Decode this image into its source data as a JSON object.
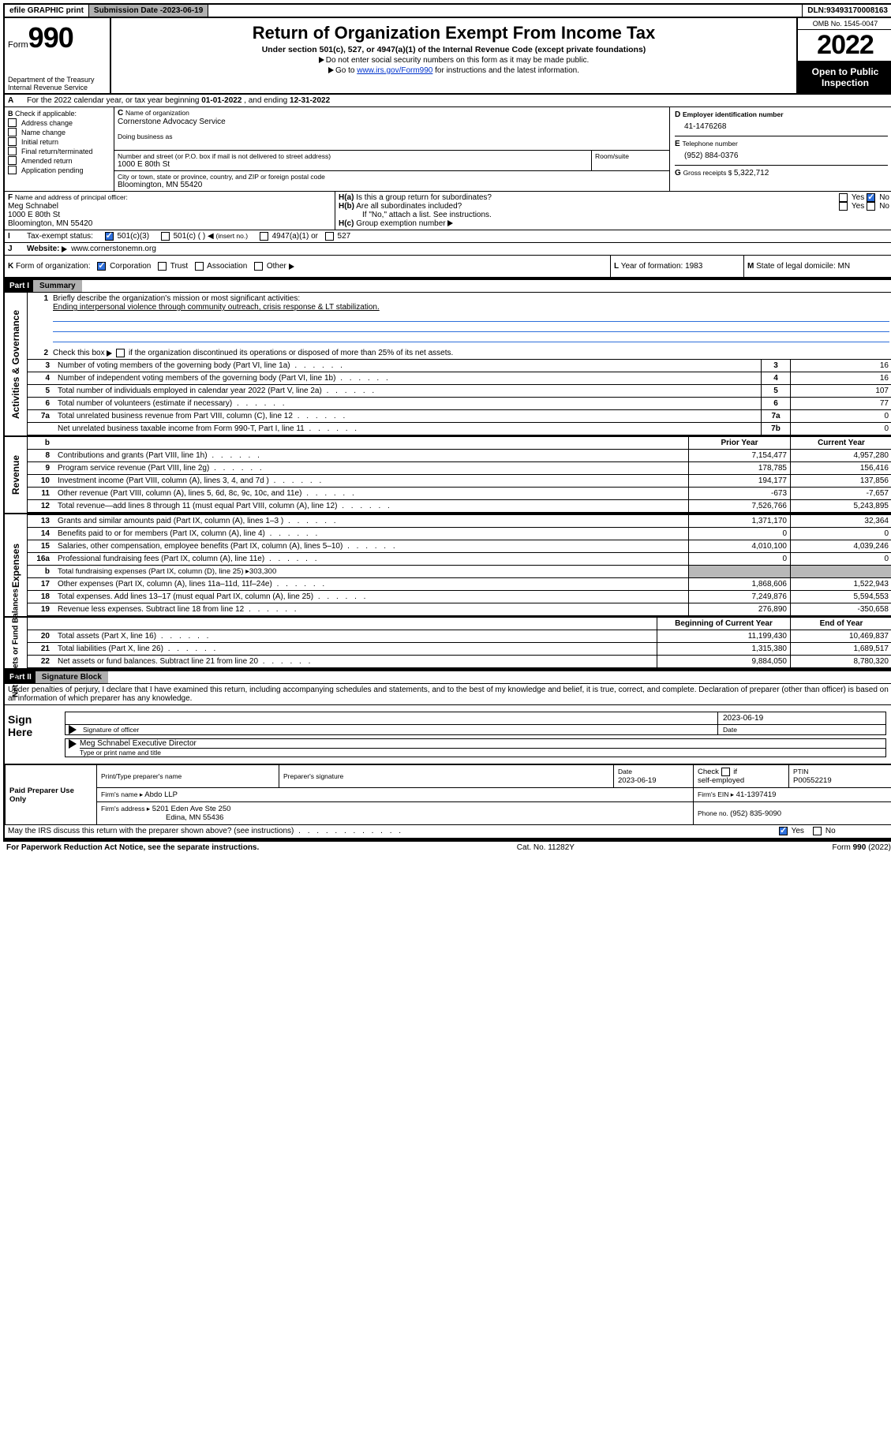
{
  "topbar": {
    "efile": "efile GRAPHIC print",
    "sub_label": "Submission Date - ",
    "sub_date": "2023-06-19",
    "dln_label": "DLN: ",
    "dln": "93493170008163"
  },
  "header": {
    "form_small": "Form",
    "form_big": "990",
    "dept": "Department of the Treasury",
    "irs": "Internal Revenue Service",
    "title": "Return of Organization Exempt From Income Tax",
    "sub1": "Under section 501(c), 527, or 4947(a)(1) of the Internal Revenue Code (except private foundations)",
    "sub2": "Do not enter social security numbers on this form as it may be made public.",
    "sub3a": "Go to ",
    "sub3link": "www.irs.gov/Form990",
    "sub3b": " for instructions and the latest information.",
    "omb": "OMB No. 1545-0047",
    "year": "2022",
    "open": "Open to Public Inspection"
  },
  "lineA": {
    "prefix": "For the 2022 calendar year, or tax year beginning ",
    "begin": "01-01-2022",
    "mid": ", and ending ",
    "end": "12-31-2022"
  },
  "boxB": {
    "label": "Check if applicable:",
    "items": [
      "Address change",
      "Name change",
      "Initial return",
      "Final return/terminated",
      "Amended return",
      "Application pending"
    ]
  },
  "boxC": {
    "name_lbl": "Name of organization",
    "name": "Cornerstone Advocacy Service",
    "dba_lbl": "Doing business as",
    "addr_lbl": "Number and street (or P.O. box if mail is not delivered to street address)",
    "room_lbl": "Room/suite",
    "addr": "1000 E 80th St",
    "city_lbl": "City or town, state or province, country, and ZIP or foreign postal code",
    "city": "Bloomington, MN  55420"
  },
  "boxD": {
    "lbl": "Employer identification number",
    "val": "41-1476268"
  },
  "boxE": {
    "lbl": "Telephone number",
    "val": "(952) 884-0376"
  },
  "boxG": {
    "lbl": "Gross receipts $ ",
    "val": "5,322,712"
  },
  "boxF": {
    "lbl": "Name and address of principal officer:",
    "name": "Meg Schnabel",
    "addr1": "1000 E 80th St",
    "addr2": "Bloomington, MN  55420"
  },
  "boxH": {
    "a_lbl": "Is this a group return for subordinates?",
    "b_lbl": "Are all subordinates included?",
    "b_note": "If \"No,\" attach a list. See instructions.",
    "c_lbl": "Group exemption number",
    "yes": "Yes",
    "no": "No"
  },
  "boxI": {
    "lbl": "Tax-exempt status:",
    "o1": "501(c)(3)",
    "o2": "501(c) (  )",
    "o2b": "(insert no.)",
    "o3": "4947(a)(1) or",
    "o4": "527"
  },
  "boxJ": {
    "lbl": "Website:",
    "val": "www.cornerstonemn.org"
  },
  "boxK": {
    "lbl": "Form of organization:",
    "o1": "Corporation",
    "o2": "Trust",
    "o3": "Association",
    "o4": "Other"
  },
  "boxL": {
    "lbl": "Year of formation: ",
    "val": "1983"
  },
  "boxM": {
    "lbl": "State of legal domicile: ",
    "val": "MN"
  },
  "partI": {
    "hdr": "Part I",
    "title": "Summary",
    "q1": "Briefly describe the organization's mission or most significant activities:",
    "q1a": "Ending interpersonal violence through community outreach, crisis response & LT stabilization.",
    "q2": "Check this box ▸        if the organization discontinued its operations or disposed of more than 25% of its net assets.",
    "lines": [
      {
        "n": "3",
        "t": "Number of voting members of the governing body (Part VI, line 1a)",
        "rn": "3",
        "v": "16"
      },
      {
        "n": "4",
        "t": "Number of independent voting members of the governing body (Part VI, line 1b)",
        "rn": "4",
        "v": "16"
      },
      {
        "n": "5",
        "t": "Total number of individuals employed in calendar year 2022 (Part V, line 2a)",
        "rn": "5",
        "v": "107"
      },
      {
        "n": "6",
        "t": "Total number of volunteers (estimate if necessary)",
        "rn": "6",
        "v": "77"
      },
      {
        "n": "7a",
        "t": "Total unrelated business revenue from Part VIII, column (C), line 12",
        "rn": "7a",
        "v": "0"
      },
      {
        "n": "",
        "t": "Net unrelated business taxable income from Form 990-T, Part I, line 11",
        "rn": "7b",
        "v": "0"
      }
    ],
    "side1": "Activities & Governance",
    "side2": "Revenue",
    "side3": "Expenses",
    "side4": "Net Assets or Fund Balances",
    "th_prior": "Prior Year",
    "th_curr": "Current Year",
    "rev": [
      {
        "n": "8",
        "t": "Contributions and grants (Part VIII, line 1h)",
        "p": "7,154,477",
        "c": "4,957,280"
      },
      {
        "n": "9",
        "t": "Program service revenue (Part VIII, line 2g)",
        "p": "178,785",
        "c": "156,416"
      },
      {
        "n": "10",
        "t": "Investment income (Part VIII, column (A), lines 3, 4, and 7d )",
        "p": "194,177",
        "c": "137,856"
      },
      {
        "n": "11",
        "t": "Other revenue (Part VIII, column (A), lines 5, 6d, 8c, 9c, 10c, and 11e)",
        "p": "-673",
        "c": "-7,657"
      },
      {
        "n": "12",
        "t": "Total revenue—add lines 8 through 11 (must equal Part VIII, column (A), line 12)",
        "p": "7,526,766",
        "c": "5,243,895"
      }
    ],
    "exp": [
      {
        "n": "13",
        "t": "Grants and similar amounts paid (Part IX, column (A), lines 1–3 )",
        "p": "1,371,170",
        "c": "32,364"
      },
      {
        "n": "14",
        "t": "Benefits paid to or for members (Part IX, column (A), line 4)",
        "p": "0",
        "c": "0"
      },
      {
        "n": "15",
        "t": "Salaries, other compensation, employee benefits (Part IX, column (A), lines 5–10)",
        "p": "4,010,100",
        "c": "4,039,246"
      },
      {
        "n": "16a",
        "t": "Professional fundraising fees (Part IX, column (A), line 11e)",
        "p": "0",
        "c": "0"
      }
    ],
    "exp_b": {
      "n": "b",
      "t": "Total fundraising expenses (Part IX, column (D), line 25) ▸",
      "v": "303,300"
    },
    "exp2": [
      {
        "n": "17",
        "t": "Other expenses (Part IX, column (A), lines 11a–11d, 11f–24e)",
        "p": "1,868,606",
        "c": "1,522,943"
      },
      {
        "n": "18",
        "t": "Total expenses. Add lines 13–17 (must equal Part IX, column (A), line 25)",
        "p": "7,249,876",
        "c": "5,594,553"
      },
      {
        "n": "19",
        "t": "Revenue less expenses. Subtract line 18 from line 12",
        "p": "276,890",
        "c": "-350,658"
      }
    ],
    "th_beg": "Beginning of Current Year",
    "th_end": "End of Year",
    "net": [
      {
        "n": "20",
        "t": "Total assets (Part X, line 16)",
        "p": "11,199,430",
        "c": "10,469,837"
      },
      {
        "n": "21",
        "t": "Total liabilities (Part X, line 26)",
        "p": "1,315,380",
        "c": "1,689,517"
      },
      {
        "n": "22",
        "t": "Net assets or fund balances. Subtract line 21 from line 20",
        "p": "9,884,050",
        "c": "8,780,320"
      }
    ]
  },
  "partII": {
    "hdr": "Part II",
    "title": "Signature Block",
    "decl": "Under penalties of perjury, I declare that I have examined this return, including accompanying schedules and statements, and to the best of my knowledge and belief, it is true, correct, and complete. Declaration of preparer (other than officer) is based on all information of which preparer has any knowledge.",
    "sign_here": "Sign Here",
    "sig_officer": "Signature of officer",
    "sig_date": "Date",
    "sig_date_v": "2023-06-19",
    "sig_name": "Meg Schnabel  Executive Director",
    "sig_name_lbl": "Type or print name and title",
    "paid": "Paid Preparer Use Only",
    "p_name_lbl": "Print/Type preparer's name",
    "p_sig_lbl": "Preparer's signature",
    "p_date_lbl": "Date",
    "p_date_v": "2023-06-19",
    "p_se_lbl": "Check        if self-employed",
    "p_ptin_lbl": "PTIN",
    "p_ptin_v": "P00552219",
    "firm_name_lbl": "Firm's name    ▸",
    "firm_name": "Abdo LLP",
    "firm_ein_lbl": "Firm's EIN ▸",
    "firm_ein": "41-1397419",
    "firm_addr_lbl": "Firm's address ▸",
    "firm_addr1": "5201 Eden Ave Ste 250",
    "firm_addr2": "Edina, MN  55436",
    "firm_phone_lbl": "Phone no. ",
    "firm_phone": "(952) 835-9090",
    "discuss": "May the IRS discuss this return with the preparer shown above? (see instructions)"
  },
  "footer": {
    "pra": "For Paperwork Reduction Act Notice, see the separate instructions.",
    "cat": "Cat. No. 11282Y",
    "form": "Form 990 (2022)"
  },
  "labels": {
    "A": "A",
    "B": "B",
    "C": "C",
    "D": "D",
    "E": "E",
    "F": "F",
    "G": "G",
    "H": "H",
    "I": "I",
    "J": "J",
    "K": "K",
    "L": "L",
    "M": "M",
    "b": "b",
    "lparen": "◀",
    "rtri": "▸",
    "Ha": "H(a)",
    "Hb": "H(b)",
    "Hc": "H(c)"
  }
}
